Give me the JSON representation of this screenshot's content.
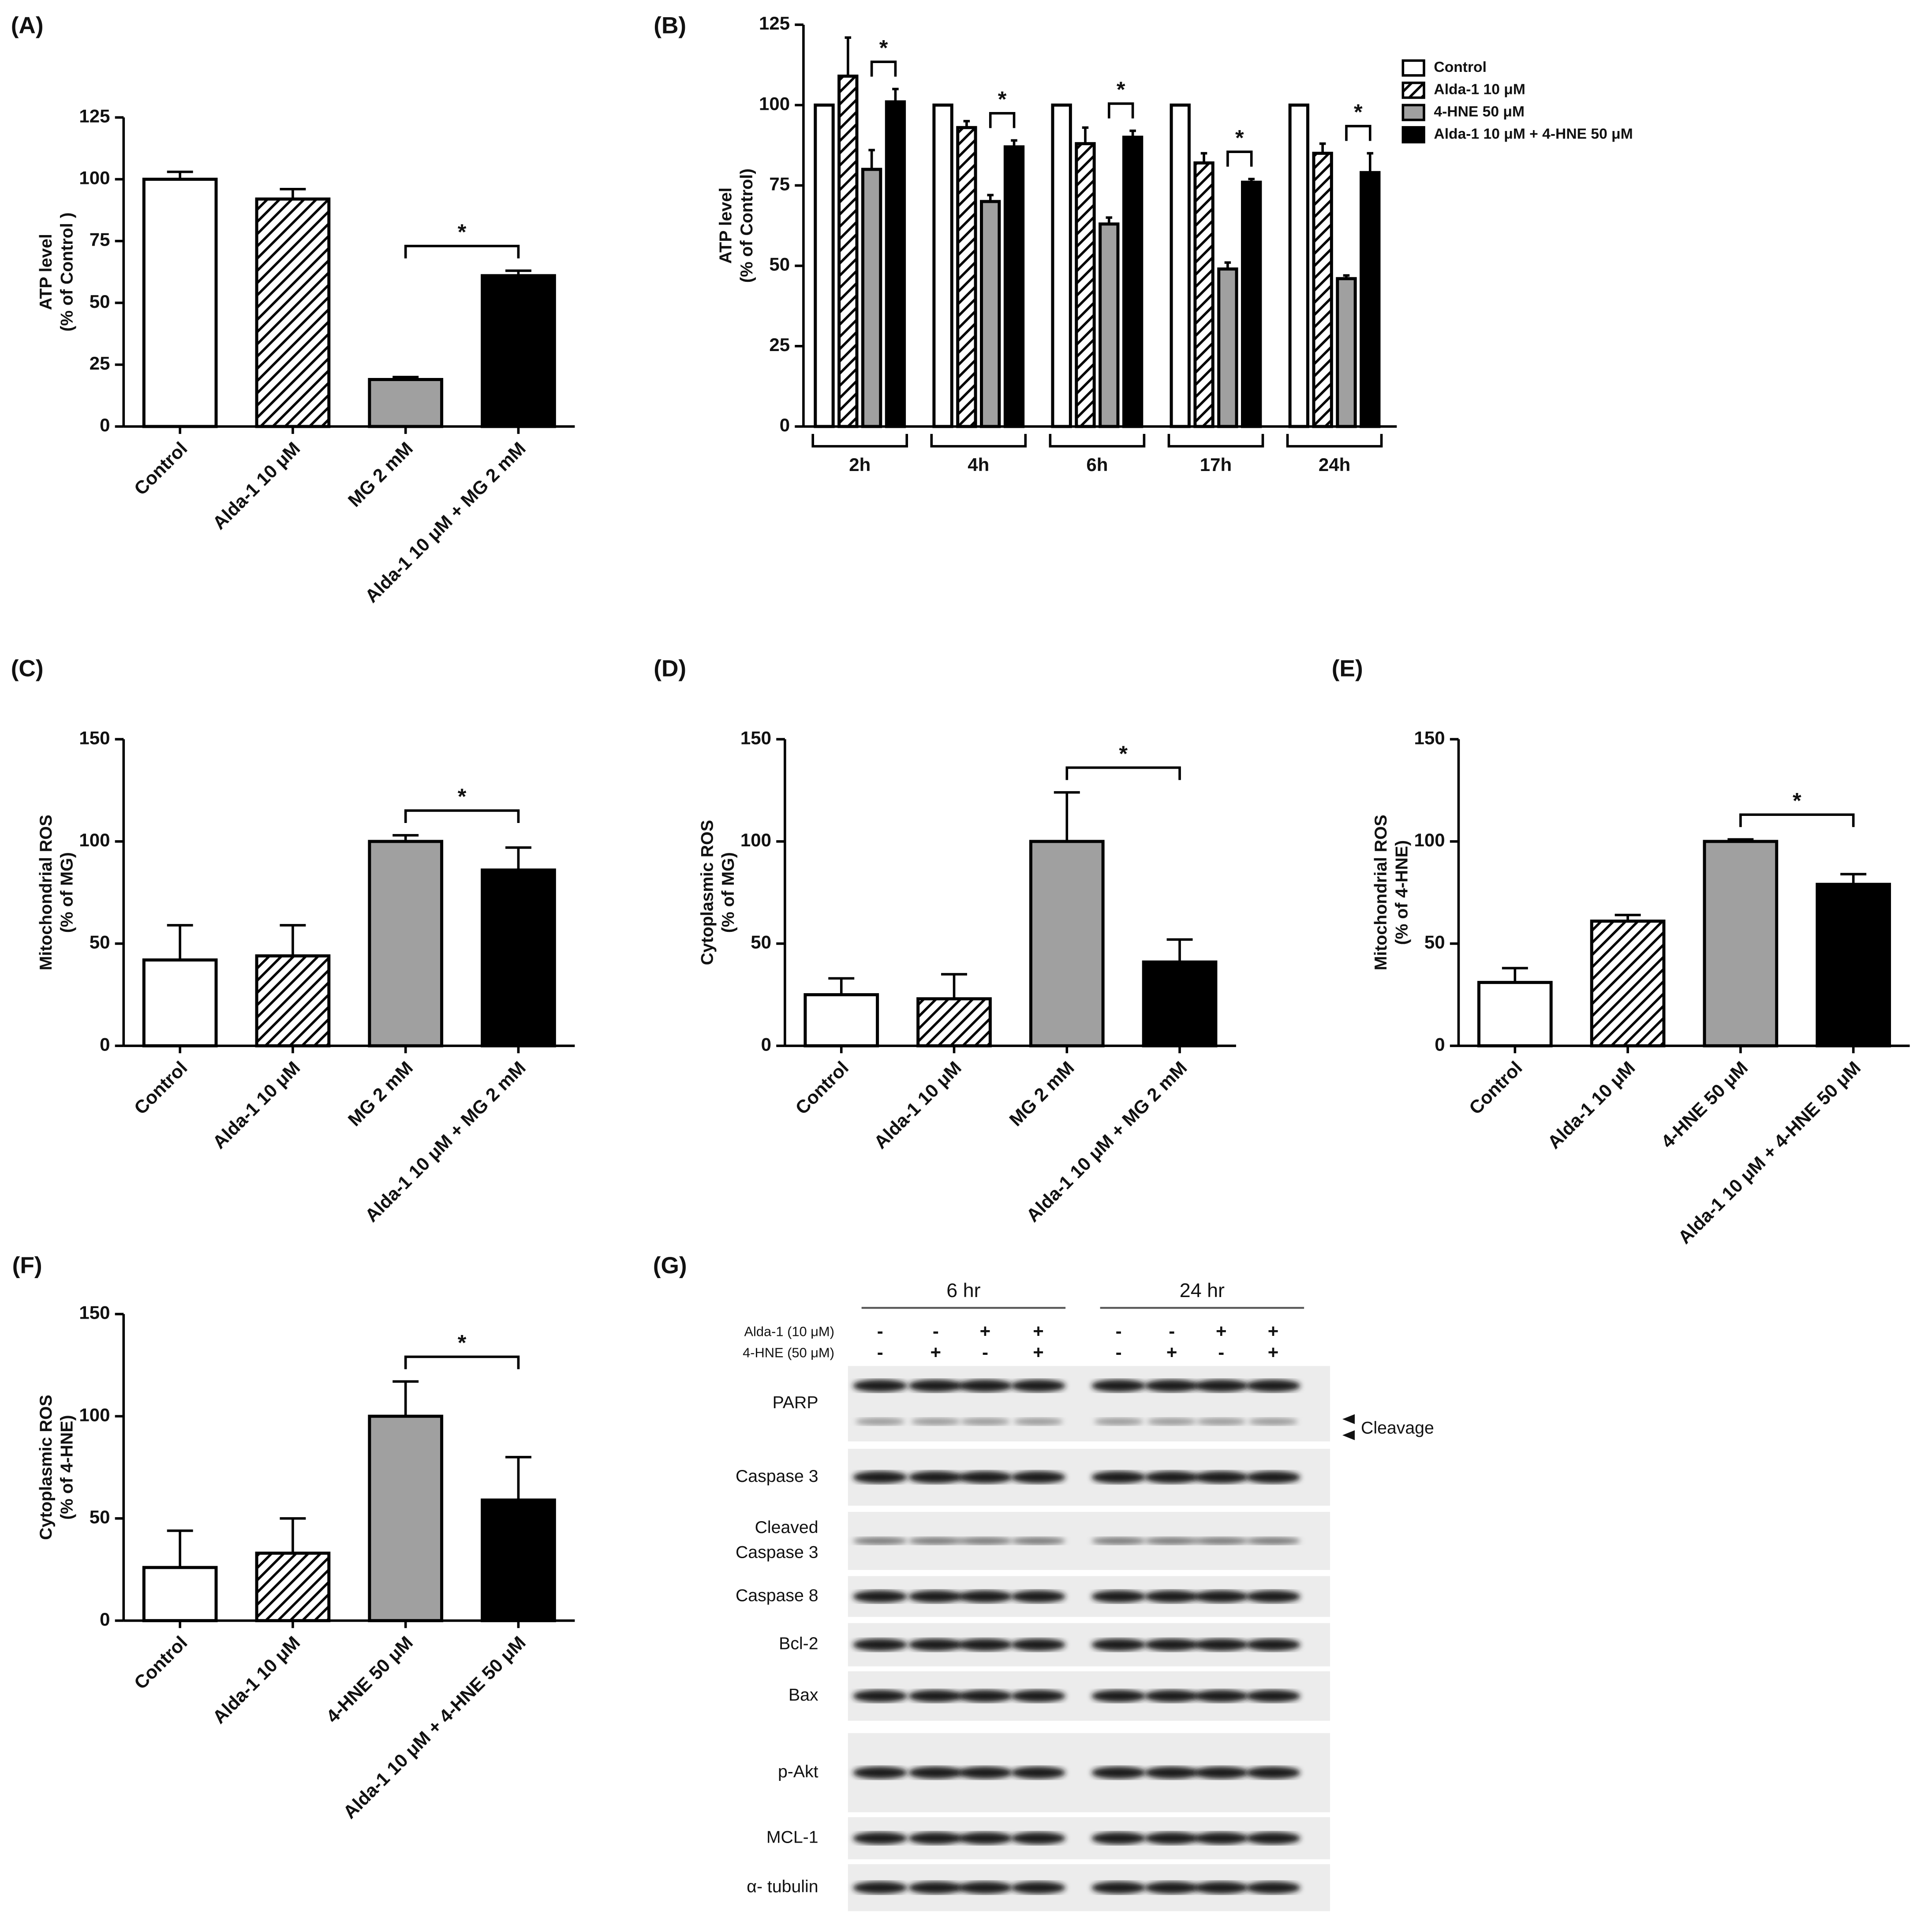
{
  "chart_data": [
    {
      "type": "bar",
      "panel": "(A)",
      "ylabel": [
        "ATP level",
        "(% of  Control )"
      ],
      "categories": [
        "Control",
        "Alda-1 10 μM",
        "MG 2 mM",
        "Alda-1 10 μM + MG 2 mM"
      ],
      "values": [
        100,
        92,
        19,
        61
      ],
      "errors": [
        3,
        4,
        1,
        2
      ],
      "colors": [
        "#ffffff",
        "#ffffff",
        "#a0a0a0",
        "#000000"
      ],
      "patterns": [
        "none",
        "hatch",
        "none",
        "none"
      ],
      "ylim": [
        0,
        125
      ],
      "yticks": [
        0,
        25,
        50,
        75,
        100,
        125
      ],
      "significance": [
        {
          "from": 2,
          "to": 3,
          "label": "*"
        }
      ]
    },
    {
      "type": "grouped-bar",
      "panel": "(B)",
      "ylabel": [
        "ATP level",
        "(% of Control)"
      ],
      "categories": [
        "2h",
        "4h",
        "6h",
        "17h",
        "24h"
      ],
      "series": [
        {
          "name": "Control",
          "color": "#ffffff",
          "pattern": "none",
          "values": [
            100,
            100,
            100,
            100,
            100
          ],
          "errors": [
            0,
            0,
            0,
            0,
            0
          ]
        },
        {
          "name": "Alda-1 10 μM",
          "color": "#ffffff",
          "pattern": "hatch",
          "values": [
            109,
            93,
            88,
            82,
            85
          ],
          "errors": [
            12,
            2,
            5,
            3,
            3
          ]
        },
        {
          "name": "4-HNE 50 μM",
          "color": "#a0a0a0",
          "pattern": "none",
          "values": [
            80,
            70,
            63,
            49,
            46
          ],
          "errors": [
            6,
            2,
            2,
            2,
            1
          ]
        },
        {
          "name": "Alda-1 10 μM + 4-HNE 50 μM",
          "color": "#000000",
          "pattern": "none",
          "values": [
            101,
            87,
            90,
            76,
            79
          ],
          "errors": [
            4,
            2,
            2,
            1,
            6
          ]
        }
      ],
      "ylim": [
        0,
        125
      ],
      "yticks": [
        0,
        25,
        50,
        75,
        100,
        125
      ],
      "legend": "upper right",
      "significance": [
        {
          "from": 2,
          "to": 3,
          "label": "*"
        }
      ]
    },
    {
      "type": "bar",
      "panel": "(C)",
      "ylabel": [
        "Mitochondrial ROS",
        "(% of MG)"
      ],
      "categories": [
        "Control",
        "Alda-1 10 μM",
        "MG 2 mM",
        "Alda-1 10 μM + MG 2 mM"
      ],
      "values": [
        42,
        44,
        100,
        86
      ],
      "errors": [
        17,
        15,
        3,
        11
      ],
      "colors": [
        "#ffffff",
        "#ffffff",
        "#a0a0a0",
        "#000000"
      ],
      "patterns": [
        "none",
        "hatch",
        "none",
        "none"
      ],
      "ylim": [
        0,
        150
      ],
      "yticks": [
        0,
        50,
        100,
        150
      ],
      "significance": [
        {
          "from": 2,
          "to": 3,
          "label": "*"
        }
      ]
    },
    {
      "type": "bar",
      "panel": "(D)",
      "ylabel": [
        "Cytoplasmic  ROS",
        "(% of MG)"
      ],
      "categories": [
        "Control",
        "Alda-1 10 μM",
        "MG 2 mM",
        "Alda-1 10 μM + MG 2 mM"
      ],
      "values": [
        25,
        23,
        100,
        41
      ],
      "errors": [
        8,
        12,
        24,
        11
      ],
      "colors": [
        "#ffffff",
        "#ffffff",
        "#a0a0a0",
        "#000000"
      ],
      "patterns": [
        "none",
        "hatch",
        "none",
        "none"
      ],
      "ylim": [
        0,
        150
      ],
      "yticks": [
        0,
        50,
        100,
        150
      ],
      "significance": [
        {
          "from": 2,
          "to": 3,
          "label": "*"
        }
      ]
    },
    {
      "type": "bar",
      "panel": "(E)",
      "ylabel": [
        "Mitochondrial ROS",
        "(% of 4-HNE)"
      ],
      "categories": [
        "Control",
        "Alda-1 10 μM",
        "4-HNE 50 μM",
        "Alda-1 10 μM + 4-HNE 50 μM"
      ],
      "values": [
        31,
        61,
        100,
        79
      ],
      "errors": [
        7,
        3,
        1,
        5
      ],
      "colors": [
        "#ffffff",
        "#ffffff",
        "#a0a0a0",
        "#000000"
      ],
      "patterns": [
        "none",
        "hatch",
        "none",
        "none"
      ],
      "ylim": [
        0,
        150
      ],
      "yticks": [
        0,
        50,
        100,
        150
      ],
      "significance": [
        {
          "from": 2,
          "to": 3,
          "label": "*"
        }
      ]
    },
    {
      "type": "bar",
      "panel": "(F)",
      "ylabel": [
        "Cytoplasmic  ROS",
        "(% of 4-HNE)"
      ],
      "categories": [
        "Control",
        "Alda-1 10 μM",
        "4-HNE 50 μM",
        "Alda-1 10 μM + 4-HNE 50 μM"
      ],
      "values": [
        26,
        33,
        100,
        59
      ],
      "errors": [
        18,
        17,
        17,
        21
      ],
      "colors": [
        "#ffffff",
        "#ffffff",
        "#a0a0a0",
        "#000000"
      ],
      "patterns": [
        "none",
        "hatch",
        "none",
        "none"
      ],
      "ylim": [
        0,
        150
      ],
      "yticks": [
        0,
        50,
        100,
        150
      ],
      "significance": [
        {
          "from": 2,
          "to": 3,
          "label": "*"
        }
      ]
    }
  ],
  "blot": {
    "panel": "(G)",
    "times": [
      "6 hr",
      "24 hr"
    ],
    "treatments": [
      {
        "name": "Alda-1 (10 μM)",
        "signs": [
          "-",
          "-",
          "+",
          "+",
          "-",
          "-",
          "+",
          "+"
        ]
      },
      {
        "name": "4-HNE (50 μM)",
        "signs": [
          "-",
          "+",
          "-",
          "+",
          "-",
          "+",
          "-",
          "+"
        ]
      }
    ],
    "rows": [
      [
        "PARP"
      ],
      [
        "Caspase 3"
      ],
      [
        "Cleaved",
        "Caspase 3"
      ],
      [
        "Caspase 8"
      ],
      [
        "Bcl-2"
      ],
      [
        "Bax"
      ],
      [
        "p-Akt"
      ],
      [
        "MCL-1"
      ],
      [
        "α- tubulin"
      ]
    ],
    "annotation": "Cleavage"
  }
}
